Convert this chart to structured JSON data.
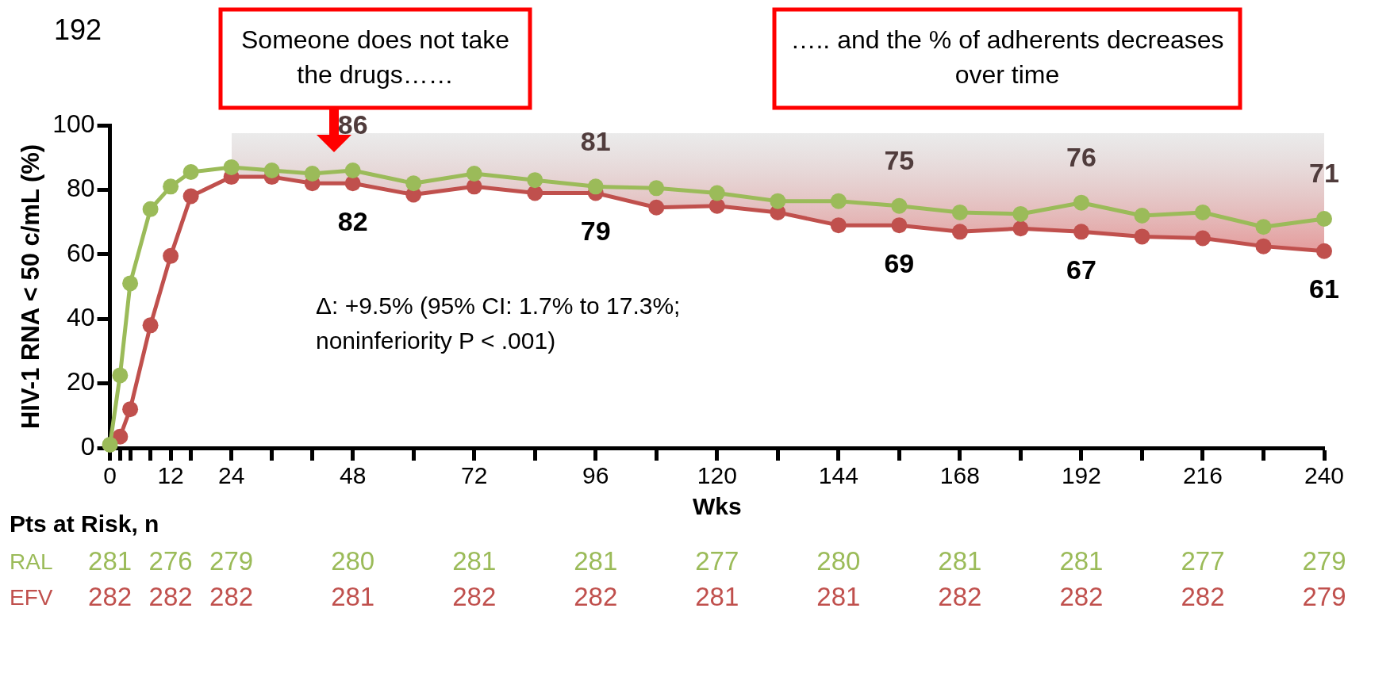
{
  "chart_data": {
    "type": "line",
    "xlabel": "Wks",
    "ylabel": "HIV-1 RNA < 50 c/mL (%)",
    "xlim": [
      0,
      240
    ],
    "ylim": [
      0,
      100
    ],
    "xticks": [
      0,
      {
        "value": 2,
        "label": null
      },
      {
        "value": 4,
        "label": null
      },
      {
        "value": 8,
        "label": null
      },
      12,
      {
        "value": 16,
        "label": null
      },
      24,
      {
        "value": 32,
        "label": null
      },
      {
        "value": 40,
        "label": null
      },
      48,
      {
        "value": 60,
        "label": null
      },
      72,
      {
        "value": 84,
        "label": null
      },
      96,
      {
        "value": 108,
        "label": null
      },
      120,
      {
        "value": 132,
        "label": null
      },
      144,
      {
        "value": 156,
        "label": null
      },
      168,
      {
        "value": 180,
        "label": null
      },
      192,
      {
        "value": 204,
        "label": null
      },
      216,
      {
        "value": 228,
        "label": null
      },
      240
    ],
    "yticks": [
      0,
      20,
      40,
      60,
      80,
      100
    ],
    "x": [
      0,
      2,
      4,
      8,
      12,
      16,
      24,
      32,
      40,
      48,
      60,
      72,
      84,
      96,
      108,
      120,
      132,
      144,
      156,
      168,
      180,
      192,
      204,
      216,
      228,
      240
    ],
    "series": [
      {
        "name": "RAL",
        "color": "#9bbb59",
        "values": [
          1,
          22.5,
          51,
          74,
          81,
          85.5,
          87,
          86,
          85,
          86,
          82,
          85,
          83,
          81,
          80.5,
          79,
          76.5,
          76.5,
          75,
          73,
          72.5,
          76,
          72,
          73,
          68.5,
          71
        ],
        "value_labels": [
          null,
          null,
          null,
          null,
          null,
          null,
          null,
          null,
          null,
          "86",
          null,
          null,
          null,
          "81",
          null,
          null,
          null,
          null,
          "75",
          null,
          null,
          "76",
          null,
          null,
          null,
          "71"
        ]
      },
      {
        "name": "EFV",
        "color": "#c0504d",
        "values": [
          null,
          3.5,
          12,
          38,
          59.5,
          78,
          84,
          84,
          82,
          82,
          78.5,
          81,
          79,
          79,
          74.5,
          75,
          73,
          69,
          69,
          67,
          68,
          67,
          65.5,
          65,
          62.5,
          61
        ],
        "value_labels": [
          null,
          null,
          null,
          null,
          null,
          null,
          null,
          null,
          null,
          "82",
          null,
          null,
          null,
          "79",
          null,
          null,
          null,
          null,
          "69",
          null,
          null,
          "67",
          null,
          null,
          null,
          "61"
        ]
      }
    ],
    "marker": "circle",
    "line_style": "solid",
    "grid": false,
    "legend": false,
    "annotations": [
      "192",
      "Someone does not take the drugs……",
      "….. and the % of adherents decreases over time",
      "Δ: +9.5% (95% CI: 1.7% to 17.3%; noninferiority P < .001)",
      "Pts at Risk, n",
      "281",
      "276",
      "279",
      "280",
      "281",
      "281",
      "277",
      "280",
      "281",
      "281",
      "277",
      "279",
      "282",
      "282",
      "282",
      "281",
      "282",
      "282",
      "281",
      "281",
      "282",
      "282",
      "282",
      "279"
    ]
  }
}
